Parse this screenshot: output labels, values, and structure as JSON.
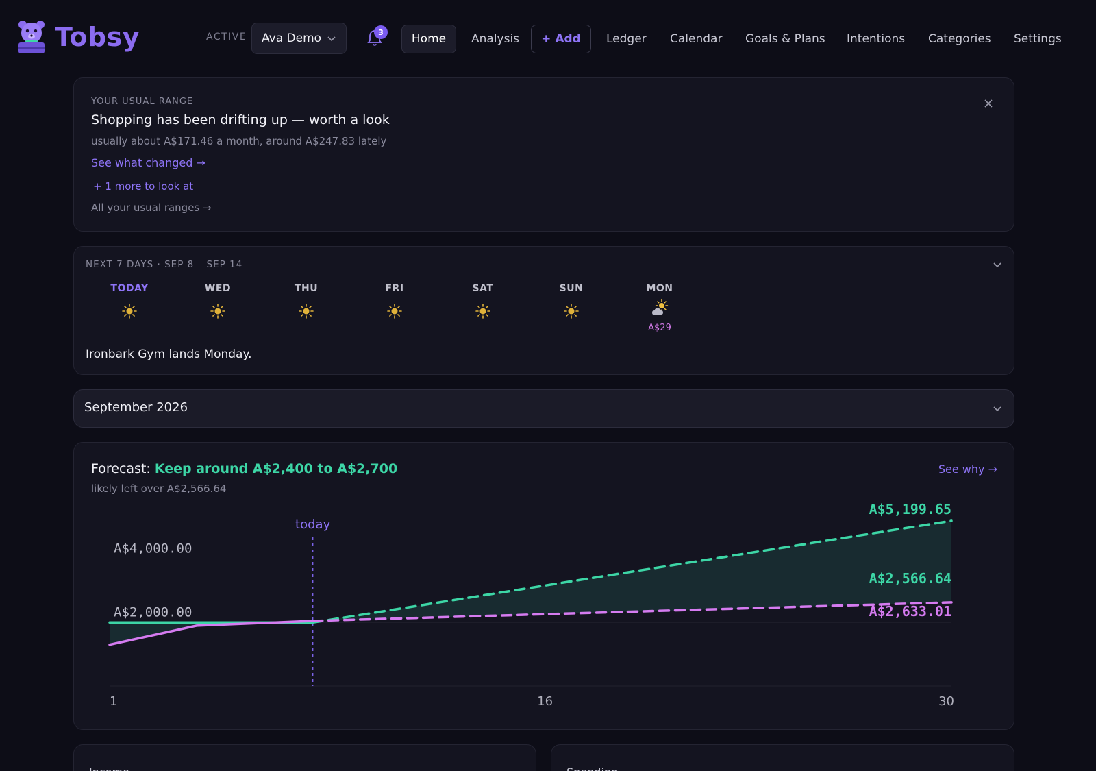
{
  "app": {
    "name": "Tobsy",
    "active_label": "ACTIVE",
    "account": "Ava Demo",
    "notification_count": "3"
  },
  "nav": {
    "home": "Home",
    "analysis": "Analysis",
    "add": "+ Add",
    "ledger": "Ledger",
    "calendar": "Calendar",
    "goals": "Goals & Plans",
    "intentions": "Intentions",
    "categories": "Categories",
    "settings": "Settings"
  },
  "insight": {
    "eyebrow": "YOUR USUAL RANGE",
    "title": "Shopping has been drifting up — worth a look",
    "subtitle": "usually about A$171.46 a month, around A$247.83 lately",
    "link": "See what changed →",
    "more": "+ 1 more to look at",
    "all": "All your usual ranges →"
  },
  "week": {
    "eyebrow": "NEXT 7 DAYS · SEP 8 – SEP 14",
    "days": [
      {
        "label": "TODAY",
        "icon": "sun-icon",
        "amount": ""
      },
      {
        "label": "WED",
        "icon": "sun-icon",
        "amount": ""
      },
      {
        "label": "THU",
        "icon": "sun-icon",
        "amount": ""
      },
      {
        "label": "FRI",
        "icon": "sun-icon",
        "amount": ""
      },
      {
        "label": "SAT",
        "icon": "sun-icon",
        "amount": ""
      },
      {
        "label": "SUN",
        "icon": "sun-icon",
        "amount": ""
      },
      {
        "label": "MON",
        "icon": "partly-cloudy-icon",
        "amount": "A$29"
      }
    ],
    "note": "Ironbark Gym lands Monday."
  },
  "month": {
    "label": "September 2026"
  },
  "forecast": {
    "prefix": "Forecast:",
    "headline": "Keep around A$2,400 to A$2,700",
    "subtitle": "likely left over A$2,566.64",
    "link": "See why →"
  },
  "chart_data": {
    "type": "line",
    "today_label": "today",
    "today_day": 8,
    "x_ticks": [
      "1",
      "16",
      "30"
    ],
    "y_ticks": [
      {
        "value": 4000,
        "label": "A$4,000.00"
      },
      {
        "value": 2000,
        "label": "A$2,000.00"
      }
    ],
    "ylim": [
      0,
      5500
    ],
    "xlim": [
      1,
      30
    ],
    "series": [
      {
        "color": "#3dd6a6",
        "actual": [
          [
            1,
            2000
          ],
          [
            8,
            2000
          ]
        ],
        "projected": [
          [
            8,
            2000
          ],
          [
            30,
            5199.65
          ]
        ],
        "end_label": "A$5,199.65"
      },
      {
        "color": "#d57bf0",
        "actual": [
          [
            1,
            1300
          ],
          [
            4,
            1900
          ],
          [
            8,
            2050
          ]
        ],
        "projected": [
          [
            8,
            2050
          ],
          [
            30,
            2633.01
          ]
        ],
        "end_label": "A$2,633.01"
      }
    ],
    "band_label": "A$2,566.64",
    "band_color": "#3dd6a6"
  },
  "bottom": {
    "income": "Income",
    "spending": "Spending"
  },
  "colors": {
    "accent": "#8e74f6",
    "green": "#3dd6a6",
    "pink": "#d57bf0",
    "sun": "#e0b23a"
  }
}
